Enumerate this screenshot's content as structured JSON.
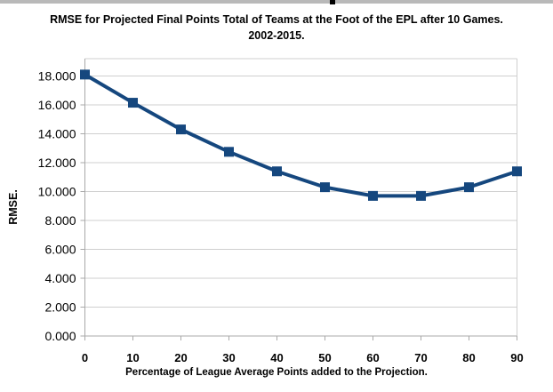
{
  "window": {
    "top_bar_color": "#b9b9b9",
    "top_bar_notch_color": "#000000"
  },
  "chart_data": {
    "type": "line",
    "title": "RMSE for Projected Final Points Total of Teams at the Foot of the EPL after 10 Games.",
    "subtitle": "2002-2015.",
    "xlabel": "Percentage of League Average Points added to the Projection.",
    "ylabel": "RMSE.",
    "x": [
      0,
      10,
      20,
      30,
      40,
      50,
      60,
      70,
      80,
      90
    ],
    "xtick_labels": [
      "0",
      "10",
      "20",
      "30",
      "40",
      "50",
      "60",
      "70",
      "80",
      "90"
    ],
    "series": [
      {
        "name": "RMSE",
        "values": [
          18.1,
          16.15,
          14.3,
          12.75,
          11.4,
          10.3,
          9.7,
          9.7,
          10.3,
          11.4
        ]
      }
    ],
    "yticks": [
      0,
      2,
      4,
      6,
      8,
      10,
      12,
      14,
      16,
      18
    ],
    "ytick_labels": [
      "0.000",
      "2.000",
      "4.000",
      "6.000",
      "8.000",
      "10.000",
      "12.000",
      "14.000",
      "16.000",
      "18.000"
    ],
    "xlim": [
      0,
      90
    ],
    "ylim": [
      0,
      19.2
    ],
    "grid": true,
    "legend_position": "none",
    "marker": "square",
    "colors": {
      "line": "#15477E",
      "marker": "#15477E",
      "grid": "#cfcfcf",
      "axis": "#a9a9a9",
      "text": "#000000",
      "background": "#ffffff"
    }
  }
}
